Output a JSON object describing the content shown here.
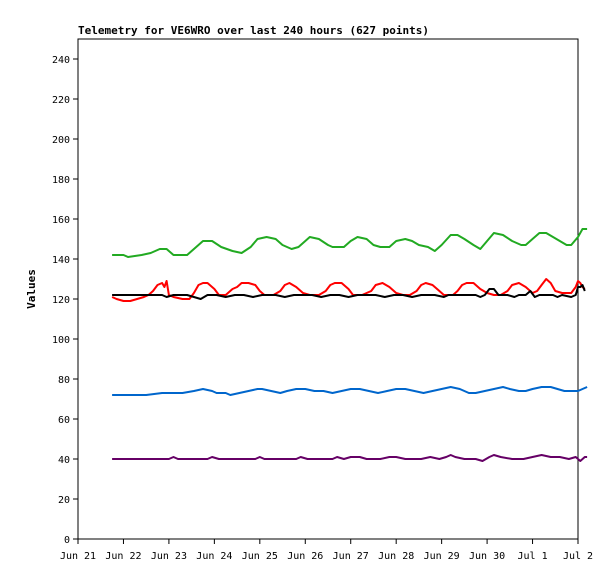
{
  "chart_data": {
    "type": "line",
    "title": "Telemetry for VE6WRO over last 240 hours (627 points)",
    "xlabel": "",
    "ylabel": "Values",
    "ylim": [
      0,
      250
    ],
    "xlim": [
      0,
      11
    ],
    "yticks": [
      0,
      20,
      40,
      60,
      80,
      100,
      120,
      140,
      160,
      180,
      200,
      220,
      240
    ],
    "xtick_labels": [
      "Jun 21",
      "Jun 22",
      "Jun 23",
      "Jun 24",
      "Jun 25",
      "Jun 26",
      "Jun 27",
      "Jun 28",
      "Jun 29",
      "Jun 30",
      "Jul 1",
      "Jul 2"
    ],
    "grid": false,
    "legend": false,
    "x_units": "days since Jun 21",
    "series": [
      {
        "color": "#22aa22",
        "points": [
          [
            0.75,
            142
          ],
          [
            1.0,
            142
          ],
          [
            1.1,
            141
          ],
          [
            1.4,
            142
          ],
          [
            1.6,
            143
          ],
          [
            1.8,
            145
          ],
          [
            1.95,
            145
          ],
          [
            2.1,
            142
          ],
          [
            2.4,
            142
          ],
          [
            2.6,
            146
          ],
          [
            2.75,
            149
          ],
          [
            2.95,
            149
          ],
          [
            3.15,
            146
          ],
          [
            3.4,
            144
          ],
          [
            3.6,
            143
          ],
          [
            3.8,
            146
          ],
          [
            3.95,
            150
          ],
          [
            4.15,
            151
          ],
          [
            4.35,
            150
          ],
          [
            4.5,
            147
          ],
          [
            4.7,
            145
          ],
          [
            4.85,
            146
          ],
          [
            5.0,
            149
          ],
          [
            5.1,
            151
          ],
          [
            5.3,
            150
          ],
          [
            5.5,
            147
          ],
          [
            5.6,
            146
          ],
          [
            5.85,
            146
          ],
          [
            6.0,
            149
          ],
          [
            6.15,
            151
          ],
          [
            6.35,
            150
          ],
          [
            6.5,
            147
          ],
          [
            6.65,
            146
          ],
          [
            6.85,
            146
          ],
          [
            7.0,
            149
          ],
          [
            7.2,
            150
          ],
          [
            7.35,
            149
          ],
          [
            7.5,
            147
          ],
          [
            7.7,
            146
          ],
          [
            7.85,
            144
          ],
          [
            8.0,
            147
          ],
          [
            8.2,
            152
          ],
          [
            8.35,
            152
          ],
          [
            8.5,
            150
          ],
          [
            8.7,
            147
          ],
          [
            8.85,
            145
          ],
          [
            9.0,
            149
          ],
          [
            9.15,
            153
          ],
          [
            9.35,
            152
          ],
          [
            9.55,
            149
          ],
          [
            9.75,
            147
          ],
          [
            9.85,
            147
          ],
          [
            10.0,
            150
          ],
          [
            10.15,
            153
          ],
          [
            10.3,
            153
          ],
          [
            10.45,
            151
          ],
          [
            10.6,
            149
          ],
          [
            10.75,
            147
          ],
          [
            10.85,
            147
          ],
          [
            11.0,
            151
          ],
          [
            11.1,
            155
          ],
          [
            11.2,
            155
          ]
        ]
      },
      {
        "color": "#ff0000",
        "points": [
          [
            0.75,
            121
          ],
          [
            0.85,
            120
          ],
          [
            1.0,
            119
          ],
          [
            1.15,
            119
          ],
          [
            1.3,
            120
          ],
          [
            1.45,
            121
          ],
          [
            1.55,
            122
          ],
          [
            1.65,
            124
          ],
          [
            1.75,
            127
          ],
          [
            1.85,
            128
          ],
          [
            1.9,
            126
          ],
          [
            1.95,
            129
          ],
          [
            2.0,
            122
          ],
          [
            2.1,
            121
          ],
          [
            2.3,
            120
          ],
          [
            2.45,
            120
          ],
          [
            2.55,
            123
          ],
          [
            2.65,
            127
          ],
          [
            2.75,
            128
          ],
          [
            2.85,
            128
          ],
          [
            3.0,
            125
          ],
          [
            3.1,
            122
          ],
          [
            3.25,
            122
          ],
          [
            3.4,
            125
          ],
          [
            3.5,
            126
          ],
          [
            3.6,
            128
          ],
          [
            3.75,
            128
          ],
          [
            3.9,
            127
          ],
          [
            4.0,
            124
          ],
          [
            4.1,
            122
          ],
          [
            4.3,
            122
          ],
          [
            4.45,
            124
          ],
          [
            4.55,
            127
          ],
          [
            4.65,
            128
          ],
          [
            4.8,
            126
          ],
          [
            4.95,
            123
          ],
          [
            5.1,
            122
          ],
          [
            5.3,
            122
          ],
          [
            5.45,
            124
          ],
          [
            5.55,
            127
          ],
          [
            5.65,
            128
          ],
          [
            5.8,
            128
          ],
          [
            5.95,
            125
          ],
          [
            6.05,
            122
          ],
          [
            6.25,
            122
          ],
          [
            6.45,
            124
          ],
          [
            6.55,
            127
          ],
          [
            6.7,
            128
          ],
          [
            6.85,
            126
          ],
          [
            7.0,
            123
          ],
          [
            7.15,
            122
          ],
          [
            7.3,
            122
          ],
          [
            7.45,
            124
          ],
          [
            7.55,
            127
          ],
          [
            7.65,
            128
          ],
          [
            7.8,
            127
          ],
          [
            7.95,
            124
          ],
          [
            8.05,
            122
          ],
          [
            8.25,
            122
          ],
          [
            8.35,
            124
          ],
          [
            8.45,
            127
          ],
          [
            8.55,
            128
          ],
          [
            8.7,
            128
          ],
          [
            8.85,
            125
          ],
          [
            9.0,
            123
          ],
          [
            9.15,
            122
          ],
          [
            9.3,
            122
          ],
          [
            9.45,
            124
          ],
          [
            9.55,
            127
          ],
          [
            9.7,
            128
          ],
          [
            9.85,
            126
          ],
          [
            10.0,
            123
          ],
          [
            10.1,
            124
          ],
          [
            10.2,
            127
          ],
          [
            10.3,
            130
          ],
          [
            10.4,
            128
          ],
          [
            10.5,
            124
          ],
          [
            10.65,
            123
          ],
          [
            10.85,
            123
          ],
          [
            10.95,
            126
          ],
          [
            11.0,
            129
          ],
          [
            11.05,
            128
          ],
          [
            11.1,
            126
          ],
          [
            11.15,
            125
          ]
        ]
      },
      {
        "color": "#000000",
        "points": [
          [
            0.75,
            122
          ],
          [
            1.0,
            122
          ],
          [
            1.5,
            122
          ],
          [
            1.85,
            122
          ],
          [
            1.95,
            121
          ],
          [
            2.1,
            122
          ],
          [
            2.4,
            122
          ],
          [
            2.55,
            121
          ],
          [
            2.7,
            120
          ],
          [
            2.85,
            122
          ],
          [
            3.05,
            122
          ],
          [
            3.25,
            121
          ],
          [
            3.45,
            122
          ],
          [
            3.65,
            122
          ],
          [
            3.85,
            121
          ],
          [
            4.05,
            122
          ],
          [
            4.35,
            122
          ],
          [
            4.55,
            121
          ],
          [
            4.75,
            122
          ],
          [
            5.15,
            122
          ],
          [
            5.35,
            121
          ],
          [
            5.55,
            122
          ],
          [
            5.75,
            122
          ],
          [
            5.95,
            121
          ],
          [
            6.15,
            122
          ],
          [
            6.55,
            122
          ],
          [
            6.75,
            121
          ],
          [
            6.95,
            122
          ],
          [
            7.15,
            122
          ],
          [
            7.35,
            121
          ],
          [
            7.55,
            122
          ],
          [
            7.85,
            122
          ],
          [
            8.05,
            121
          ],
          [
            8.15,
            122
          ],
          [
            8.45,
            122
          ],
          [
            8.75,
            122
          ],
          [
            8.85,
            121
          ],
          [
            8.95,
            122
          ],
          [
            9.05,
            125
          ],
          [
            9.15,
            125
          ],
          [
            9.25,
            122
          ],
          [
            9.45,
            122
          ],
          [
            9.6,
            121
          ],
          [
            9.7,
            122
          ],
          [
            9.85,
            122
          ],
          [
            9.95,
            124
          ],
          [
            10.05,
            121
          ],
          [
            10.15,
            122
          ],
          [
            10.45,
            122
          ],
          [
            10.55,
            121
          ],
          [
            10.65,
            122
          ],
          [
            10.85,
            121
          ],
          [
            10.95,
            122
          ],
          [
            11.0,
            126
          ],
          [
            11.05,
            126
          ],
          [
            11.1,
            127
          ],
          [
            11.15,
            124
          ]
        ]
      },
      {
        "color": "#0066cc",
        "points": [
          [
            0.75,
            72
          ],
          [
            1.0,
            72
          ],
          [
            1.5,
            72
          ],
          [
            1.85,
            73
          ],
          [
            2.15,
            73
          ],
          [
            2.3,
            73
          ],
          [
            2.55,
            74
          ],
          [
            2.75,
            75
          ],
          [
            2.95,
            74
          ],
          [
            3.05,
            73
          ],
          [
            3.25,
            73
          ],
          [
            3.35,
            72
          ],
          [
            3.55,
            73
          ],
          [
            3.75,
            74
          ],
          [
            3.95,
            75
          ],
          [
            4.05,
            75
          ],
          [
            4.25,
            74
          ],
          [
            4.45,
            73
          ],
          [
            4.6,
            74
          ],
          [
            4.8,
            75
          ],
          [
            5.0,
            75
          ],
          [
            5.2,
            74
          ],
          [
            5.4,
            74
          ],
          [
            5.6,
            73
          ],
          [
            5.8,
            74
          ],
          [
            6.0,
            75
          ],
          [
            6.2,
            75
          ],
          [
            6.4,
            74
          ],
          [
            6.6,
            73
          ],
          [
            6.8,
            74
          ],
          [
            7.0,
            75
          ],
          [
            7.2,
            75
          ],
          [
            7.4,
            74
          ],
          [
            7.6,
            73
          ],
          [
            7.8,
            74
          ],
          [
            8.0,
            75
          ],
          [
            8.2,
            76
          ],
          [
            8.4,
            75
          ],
          [
            8.6,
            73
          ],
          [
            8.75,
            73
          ],
          [
            8.95,
            74
          ],
          [
            9.15,
            75
          ],
          [
            9.35,
            76
          ],
          [
            9.5,
            75
          ],
          [
            9.7,
            74
          ],
          [
            9.85,
            74
          ],
          [
            10.0,
            75
          ],
          [
            10.2,
            76
          ],
          [
            10.4,
            76
          ],
          [
            10.55,
            75
          ],
          [
            10.7,
            74
          ],
          [
            10.85,
            74
          ],
          [
            11.0,
            74
          ],
          [
            11.1,
            75
          ],
          [
            11.2,
            76
          ]
        ]
      },
      {
        "color": "#660066",
        "points": [
          [
            0.75,
            40
          ],
          [
            1.0,
            40
          ],
          [
            1.5,
            40
          ],
          [
            2.0,
            40
          ],
          [
            2.1,
            41
          ],
          [
            2.2,
            40
          ],
          [
            2.6,
            40
          ],
          [
            2.85,
            40
          ],
          [
            2.95,
            41
          ],
          [
            3.1,
            40
          ],
          [
            3.5,
            40
          ],
          [
            3.9,
            40
          ],
          [
            4.0,
            41
          ],
          [
            4.1,
            40
          ],
          [
            4.5,
            40
          ],
          [
            4.8,
            40
          ],
          [
            4.9,
            41
          ],
          [
            5.05,
            40
          ],
          [
            5.35,
            40
          ],
          [
            5.6,
            40
          ],
          [
            5.7,
            41
          ],
          [
            5.85,
            40
          ],
          [
            6.0,
            41
          ],
          [
            6.2,
            41
          ],
          [
            6.35,
            40
          ],
          [
            6.65,
            40
          ],
          [
            6.85,
            41
          ],
          [
            7.0,
            41
          ],
          [
            7.2,
            40
          ],
          [
            7.55,
            40
          ],
          [
            7.75,
            41
          ],
          [
            7.95,
            40
          ],
          [
            8.1,
            41
          ],
          [
            8.2,
            42
          ],
          [
            8.3,
            41
          ],
          [
            8.5,
            40
          ],
          [
            8.75,
            40
          ],
          [
            8.9,
            39
          ],
          [
            9.05,
            41
          ],
          [
            9.15,
            42
          ],
          [
            9.3,
            41
          ],
          [
            9.55,
            40
          ],
          [
            9.8,
            40
          ],
          [
            10.0,
            41
          ],
          [
            10.2,
            42
          ],
          [
            10.4,
            41
          ],
          [
            10.6,
            41
          ],
          [
            10.8,
            40
          ],
          [
            10.95,
            41
          ],
          [
            11.05,
            39
          ],
          [
            11.15,
            41
          ],
          [
            11.2,
            41
          ]
        ]
      }
    ]
  }
}
